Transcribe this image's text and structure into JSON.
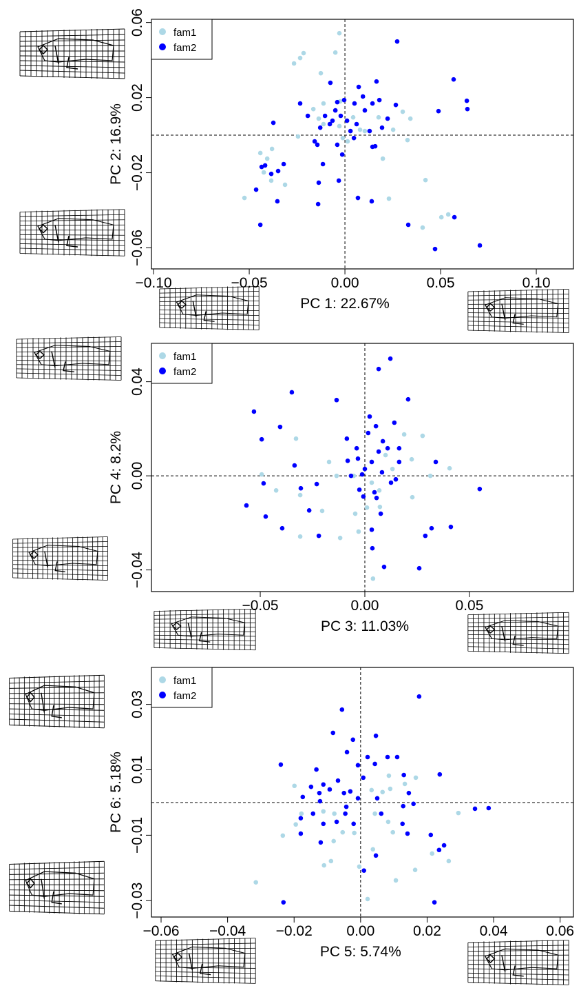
{
  "chart_data": [
    {
      "type": "scatter",
      "x_label": "PC 1: 22.67%",
      "y_label": "PC 2: 16.9%",
      "legend": "top-left",
      "xlim": [
        -0.1011,
        0.1194
      ],
      "ylim": [
        -0.0712,
        0.0617
      ],
      "xticks": [
        {
          "value": -0.1,
          "label": "−0.10"
        },
        {
          "value": -0.05,
          "label": "−0.05"
        },
        {
          "value": 0,
          "label": "0.00"
        },
        {
          "value": 0.05,
          "label": "0.05"
        },
        {
          "value": 0.1,
          "label": "0.10"
        }
      ],
      "yticks": [
        {
          "value": -0.06,
          "label": "−0.06"
        },
        {
          "value": -0.02,
          "label": "−0.02"
        },
        {
          "value": 0.02,
          "label": "0.02"
        },
        {
          "value": 0.06,
          "label": "0.06"
        }
      ],
      "series": [
        {
          "name": "fam1",
          "color": "#add8e6",
          "x": [
            -0.0029,
            -0.0216,
            -0.0234,
            -0.0266,
            -0.005,
            -0.0126,
            -0.0165,
            -0.0112,
            -0.0025,
            0.0043,
            0.0079,
            0.0252,
            0.0342,
            0.0327,
            0.0302,
            -0.0029,
            -0.0245,
            -0.0381,
            -0.0442,
            -0.0406,
            -0.0424,
            -0.0313,
            -0.0385,
            -0.0525,
            0.023,
            0.0198,
            0.0421,
            0.0504,
            0.054,
            0.0406,
            -0.0011,
            0.0014,
            0.0104,
            0.0176,
            -0.0112,
            -0.0137
          ],
          "values": [
            0.0543,
            0.0437,
            0.0411,
            0.0382,
            0.044,
            0.033,
            0.0139,
            0.0169,
            0.018,
            0.0095,
            0.0029,
            0.0029,
            0.0088,
            -0.0026,
            0.0125,
            0.0048,
            -0.0007,
            -0.0073,
            -0.0095,
            -0.0125,
            -0.0198,
            -0.0264,
            -0.0242,
            -0.0334,
            -0.0338,
            -0.0125,
            -0.0239,
            -0.0437,
            -0.0422,
            -0.0492,
            -0.0015,
            -0.0033,
            0.0022,
            0.0095,
            0.0059,
            0.0088
          ]
        },
        {
          "name": "fam2",
          "color": "#0000ff",
          "x": [
            0.0273,
            0.0568,
            0.0637,
            0.064,
            0.0489,
            0.0165,
            0.0144,
            0.018,
            0.0223,
            0.0266,
            0.0072,
            0.0094,
            0.005,
            -0.0004,
            -0.004,
            -0.005,
            -0.0022,
            -0.0065,
            -0.0104,
            -0.0079,
            -0.0129,
            -0.0158,
            -0.0234,
            -0.0374,
            -0.0194,
            0.0011,
            0.0061,
            0.0104,
            0.0129,
            0.0144,
            0.0158,
            0.0047,
            -0.004,
            -0.0115,
            -0.0137,
            -0.0032,
            0.0068,
            0.014,
            -0.014,
            -0.0349,
            -0.0385,
            -0.032,
            -0.0417,
            -0.0435,
            -0.0464,
            -0.0353,
            -0.0442,
            -0.0144,
            -0.0014,
            0.0331,
            0.0471,
            0.0572,
            0.0705,
            0.0029,
            -0.0076,
            0.0194
          ],
          "values": [
            0.0499,
            0.0297,
            0.0183,
            0.0139,
            0.0128,
            0.0286,
            0.0169,
            0.0187,
            0.0088,
            0.0161,
            0.0257,
            0.0206,
            0.0169,
            0.0187,
            0.0176,
            0.0132,
            0.0103,
            0.0077,
            0.0103,
            0.0059,
            0.004,
            -0.0033,
            0.0169,
            0.0066,
            0.0103,
            0.0077,
            0.0059,
            0.0132,
            0.0022,
            -0.0062,
            -0.0059,
            -0.0015,
            -0.0051,
            -0.0154,
            -0.0253,
            -0.0242,
            -0.0334,
            -0.0352,
            -0.0367,
            -0.0191,
            -0.0206,
            -0.0154,
            -0.0161,
            -0.0169,
            -0.029,
            -0.0352,
            -0.0477,
            -0.0051,
            -0.0103,
            -0.0477,
            -0.0606,
            -0.0437,
            -0.0587,
            0.0022,
            0.0279,
            0.004
          ]
        }
      ]
    },
    {
      "type": "scatter",
      "x_label": "PC 3: 11.03%",
      "y_label": "PC 4: 8.2%",
      "legend": "top-left",
      "xlim": [
        -0.102,
        0.0997
      ],
      "ylim": [
        -0.0492,
        0.0563
      ],
      "xticks": [
        {
          "value": -0.05,
          "label": "−0.05"
        },
        {
          "value": 0,
          "label": "0.00"
        },
        {
          "value": 0.05,
          "label": "0.05"
        }
      ],
      "yticks": [
        {
          "value": -0.04,
          "label": "−0.04"
        },
        {
          "value": 0,
          "label": "0.00"
        },
        {
          "value": 0.04,
          "label": "0.04"
        }
      ],
      "series": [
        {
          "name": "fam1",
          "color": "#add8e6",
          "x": [
            -0.0493,
            -0.0329,
            -0.0424,
            -0.0309,
            -0.0309,
            -0.0204,
            -0.0118,
            -0.0046,
            -0.003,
            0.001,
            0.0069,
            0.0072,
            0.0227,
            0.0224,
            0.0276,
            0.0405,
            0.0313,
            0.0132,
            0.0099,
            0.0039,
            -0.0135,
            -0.0171,
            -0.0053,
            0.0188,
            0.0033
          ],
          "values": [
            0.0006,
            0.0158,
            -0.0062,
            -0.0082,
            -0.0258,
            -0.0149,
            -0.0264,
            -0.0161,
            -0.0237,
            -0.0135,
            -0.0062,
            -0.0132,
            -0.0091,
            0.007,
            0.017,
            0.0032,
            0,
            0.0029,
            0.0088,
            -0.0437,
            0,
            0.0059,
            0,
            0.0176,
            -0.0029
          ]
        },
        {
          "name": "fam2",
          "color": "#0000ff",
          "x": [
            0.0122,
            0.0066,
            -0.0349,
            -0.0135,
            0.0207,
            -0.053,
            0.0023,
            0.0141,
            -0.0405,
            -0.0493,
            -0.0086,
            0.0053,
            0.0016,
            0.0086,
            0.0109,
            0.0066,
            -0.0039,
            -0.0033,
            -0.0082,
            0,
            0.0033,
            0.0082,
            -0.0013,
            -0.0066,
            0.0164,
            0.0339,
            0.0125,
            0.0046,
            -0.0007,
            -0.0026,
            -0.023,
            -0.0306,
            -0.0484,
            -0.0566,
            -0.0474,
            -0.0395,
            -0.0266,
            -0.022,
            -0.0336,
            0.0549,
            0.0056,
            0.0076,
            0.0319,
            0.0411,
            0.0289,
            0.0036,
            0.0092,
            0.026,
            0.0033,
            0.0164,
            0.0148
          ],
          "values": [
            0.0498,
            0.0454,
            0.0355,
            0.0322,
            0.0325,
            0.0273,
            0.0252,
            0.0226,
            0.0208,
            0.0155,
            0.0158,
            0.0211,
            0.0182,
            0.0147,
            0.0117,
            0.0103,
            0.0117,
            0.0073,
            0.0064,
            0.0029,
            0.0059,
            0.0015,
            0.0006,
            0,
            0.0059,
            0.0059,
            -0.0029,
            -0.007,
            -0.0088,
            -0.0059,
            -0.0035,
            -0.0053,
            -0.0032,
            -0.0126,
            -0.0173,
            -0.0223,
            -0.0147,
            -0.0255,
            0.0044,
            -0.0056,
            -0.0094,
            -0.0161,
            -0.0223,
            -0.0217,
            -0.0255,
            -0.0308,
            -0.0387,
            -0.0393,
            -0.0229,
            0.0117,
            -0.0015
          ]
        }
      ]
    },
    {
      "type": "scatter",
      "x_label": "PC 5: 5.74%",
      "y_label": "PC 6: 5.18%",
      "legend": "top-left",
      "xlim": [
        -0.0629,
        0.064
      ],
      "ylim": [
        -0.035,
        0.0413
      ],
      "xticks": [
        {
          "value": -0.06,
          "label": "−0.06"
        },
        {
          "value": -0.04,
          "label": "−0.04"
        },
        {
          "value": -0.02,
          "label": "−0.02"
        },
        {
          "value": 0,
          "label": "0.00"
        },
        {
          "value": 0.02,
          "label": "0.02"
        },
        {
          "value": 0.04,
          "label": "0.04"
        },
        {
          "value": 0.06,
          "label": "0.06"
        }
      ],
      "yticks": [
        {
          "value": -0.03,
          "label": "−0.03"
        },
        {
          "value": -0.01,
          "label": "−0.01"
        },
        {
          "value": 0.01,
          "label": "0.01"
        },
        {
          "value": 0.03,
          "label": "0.03"
        }
      ],
      "series": [
        {
          "name": "fam1",
          "color": "#add8e6",
          "x": [
            -0.0315,
            -0.0234,
            -0.0199,
            -0.0178,
            -0.0195,
            -0.0112,
            -0.0079,
            -0.0081,
            -0.0089,
            -0.011,
            -0.0054,
            -0.0019,
            -0.0004,
            0.0021,
            0.0043,
            0.0066,
            0.0089,
            0.0097,
            0.0106,
            0.0033,
            0.0085,
            0.0133,
            0.0166,
            0.0164,
            0.0215,
            0.0265,
            0.0294,
            0.0037,
            0.0083
          ],
          "values": [
            -0.0244,
            -0.0101,
            0.0051,
            -0.0034,
            -0.0067,
            -0.0027,
            -0.0034,
            -0.0118,
            -0.0179,
            -0.0192,
            -0.0091,
            -0.0093,
            -0.0196,
            -0.0295,
            -0.0034,
            0.0032,
            0.0042,
            -0.0091,
            -0.0238,
            0.0038,
            0.0082,
            0.0057,
            0.0076,
            -0.0206,
            -0.0156,
            -0.0179,
            -0.0032,
            -0.0143,
            -0.0059
          ]
        },
        {
          "name": "fam2",
          "color": "#0000ff",
          "x": [
            -0.0056,
            0.0176,
            -0.0083,
            -0.0023,
            0.0046,
            0.0238,
            -0.024,
            -0.0041,
            -0.0008,
            0.0021,
            0.0043,
            0.0081,
            0.011,
            0.013,
            0.0145,
            0.0159,
            -0.0133,
            -0.0112,
            -0.0174,
            -0.0149,
            -0.0124,
            -0.0093,
            -0.0068,
            -0.005,
            -0.0031,
            -0.0008,
            0.0008,
            -0.0043,
            -0.0122,
            -0.018,
            -0.0143,
            -0.0112,
            -0.018,
            -0.012,
            -0.0046,
            -0.0072,
            -0.0021,
            0.0062,
            0.0128,
            0.0126,
            0.0141,
            0.0211,
            0.0251,
            0.0236,
            0.0344,
            0.0385,
            0.0046,
            0.001,
            0.0222,
            -0.0232,
            0.005
          ],
          "values": [
            0.0284,
            0.0324,
            0.0213,
            0.0192,
            0.0204,
            0.0086,
            0.0116,
            0.0154,
            0.0114,
            0.0139,
            0.0118,
            0.0139,
            0.0139,
            0.0084,
            0.0029,
            -0.0004,
            0.0101,
            0.0055,
            0.0017,
            0.0048,
            0.0029,
            0.004,
            0.0067,
            0.0029,
            0.0034,
            0.0013,
            0.0076,
            -0.0013,
            0.0004,
            -0.0048,
            -0.0034,
            -0.0065,
            -0.0095,
            -0.0122,
            -0.0034,
            -0.0059,
            -0.0065,
            -0.0034,
            -0.0011,
            -0.0065,
            -0.0095,
            -0.0099,
            -0.0131,
            -0.0145,
            -0.0019,
            -0.0017,
            -0.0162,
            -0.0208,
            -0.0305,
            -0.0305,
            0.0013
          ]
        }
      ]
    }
  ]
}
